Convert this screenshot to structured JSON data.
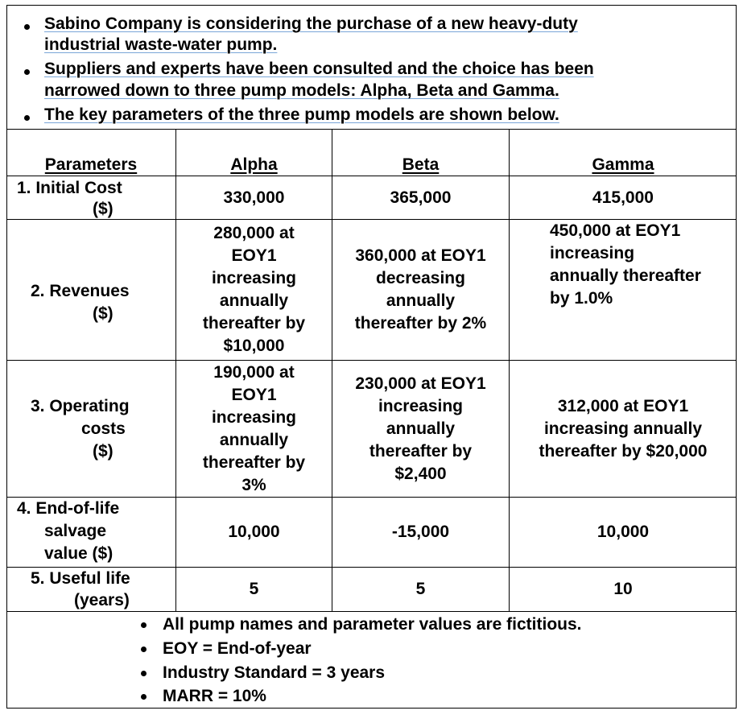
{
  "intro_bullets": [
    [
      "Sabino Company is considering the purchase of a new heavy-duty",
      "industrial waste-water pump."
    ],
    [
      "Suppliers and experts have been consulted and the choice has been",
      "narrowed down to three pump models: Alpha, Beta and Gamma."
    ],
    [
      "The key parameters of the three pump models are shown below."
    ]
  ],
  "table": {
    "headers": {
      "parameters": "Parameters",
      "alpha": "Alpha",
      "beta": "Beta",
      "gamma": "Gamma"
    },
    "rows": [
      {
        "label": [
          "1.  Initial Cost",
          "($)"
        ],
        "alpha": [
          "330,000"
        ],
        "beta": [
          "365,000"
        ],
        "gamma": [
          "415,000"
        ]
      },
      {
        "label": [
          "2.  Revenues",
          "($)"
        ],
        "alpha": [
          "280,000 at",
          "EOY1",
          "increasing",
          "annually",
          "thereafter by",
          "$10,000"
        ],
        "beta": [
          "360,000 at EOY1",
          "decreasing",
          "annually",
          "thereafter by 2%"
        ],
        "gamma": [
          "450,000 at EOY1",
          "increasing",
          "annually thereafter",
          "by 1.0%"
        ]
      },
      {
        "label": [
          "3.  Operating",
          "costs",
          "($)"
        ],
        "alpha": [
          "190,000 at",
          "EOY1",
          "increasing",
          "annually",
          "thereafter by",
          "3%"
        ],
        "beta": [
          "230,000 at EOY1",
          "increasing",
          "annually",
          "thereafter by",
          "$2,400"
        ],
        "gamma": [
          "312,000 at EOY1",
          "increasing annually",
          "thereafter by $20,000"
        ]
      },
      {
        "label": [
          "4.  End-of-life",
          "salvage",
          "value ($)"
        ],
        "alpha": [
          "10,000"
        ],
        "beta": [
          "-15,000"
        ],
        "gamma": [
          "10,000"
        ]
      },
      {
        "label": [
          "5.  Useful life",
          "(years)"
        ],
        "alpha": [
          "5"
        ],
        "beta": [
          "5"
        ],
        "gamma": [
          "10"
        ]
      }
    ]
  },
  "notes": [
    "All pump names and parameter values are fictitious.",
    "EOY = End-of-year",
    "Industry Standard = 3 years",
    "MARR = 10%"
  ]
}
